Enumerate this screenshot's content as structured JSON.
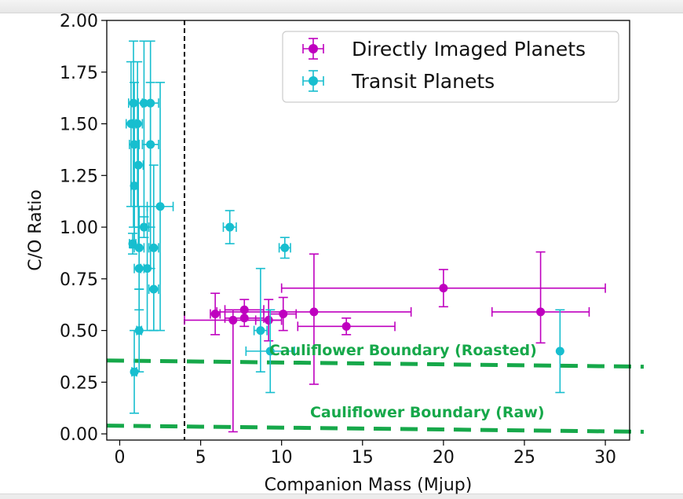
{
  "chart_data": {
    "type": "scatter",
    "title": "",
    "xlabel": "Companion Mass (Mjup)",
    "ylabel": "C/O Ratio",
    "xlim": [
      -0.8,
      31.5
    ],
    "ylim": [
      -0.03,
      2.0
    ],
    "xticks": [
      0,
      5,
      10,
      15,
      20,
      25,
      30
    ],
    "xtick_labels": [
      "0",
      "5",
      "10",
      "15",
      "20",
      "25",
      "30"
    ],
    "yticks": [
      0.0,
      0.25,
      0.5,
      0.75,
      1.0,
      1.25,
      1.5,
      1.75,
      2.0
    ],
    "ytick_labels": [
      "0.00",
      "0.25",
      "0.50",
      "0.75",
      "1.00",
      "1.25",
      "1.50",
      "1.75",
      "2.00"
    ],
    "grid": false,
    "legend_position": "top-right",
    "colors": {
      "directly_imaged": "#bf00bf",
      "transit": "#17becf",
      "boundary": "#16a84a",
      "vline": "#000000"
    },
    "vertical_line": {
      "x": 4.0,
      "style": "dashed"
    },
    "series": [
      {
        "name": "Directly Imaged Planets",
        "color": "#bf00bf",
        "points": [
          {
            "x": 5.9,
            "y": 0.58,
            "xerr": [
              0.3,
              0.3
            ],
            "yerr": [
              0.1,
              0.1
            ]
          },
          {
            "x": 7.0,
            "y": 0.55,
            "xerr": [
              3.0,
              3.0
            ],
            "yerr": [
              0.54,
              0.05
            ]
          },
          {
            "x": 7.7,
            "y": 0.6,
            "xerr": [
              1.2,
              1.2
            ],
            "yerr": [
              0.05,
              0.05
            ]
          },
          {
            "x": 7.7,
            "y": 0.56,
            "xerr": [
              1.2,
              1.2
            ],
            "yerr": [
              0.04,
              0.04
            ]
          },
          {
            "x": 9.2,
            "y": 0.55,
            "xerr": [
              0.8,
              0.8
            ],
            "yerr": [
              0.1,
              0.1
            ]
          },
          {
            "x": 10.1,
            "y": 0.58,
            "xerr": [
              0.8,
              0.8
            ],
            "yerr": [
              0.08,
              0.08
            ]
          },
          {
            "x": 12.0,
            "y": 0.59,
            "xerr": [
              6.0,
              6.0
            ],
            "yerr": [
              0.35,
              0.28
            ]
          },
          {
            "x": 14.0,
            "y": 0.52,
            "xerr": [
              3.0,
              3.0
            ],
            "yerr": [
              0.04,
              0.04
            ]
          },
          {
            "x": 20.0,
            "y": 0.705,
            "xerr": [
              10.0,
              10.0
            ],
            "yerr": [
              0.09,
              0.09
            ]
          },
          {
            "x": 26.0,
            "y": 0.59,
            "xerr": [
              3.0,
              3.0
            ],
            "yerr": [
              0.15,
              0.29
            ]
          }
        ]
      },
      {
        "name": "Transit Planets",
        "color": "#17becf",
        "points": [
          {
            "x": 0.7,
            "y": 1.5,
            "xerr": [
              0.3,
              0.3
            ],
            "yerr": [
              0.4,
              0.3
            ]
          },
          {
            "x": 0.85,
            "y": 1.6,
            "xerr": [
              0.3,
              0.3
            ],
            "yerr": [
              0.6,
              0.3
            ]
          },
          {
            "x": 0.9,
            "y": 1.4,
            "xerr": [
              0.3,
              0.3
            ],
            "yerr": [
              0.5,
              0.3
            ]
          },
          {
            "x": 0.9,
            "y": 1.2,
            "xerr": [
              0.2,
              0.2
            ],
            "yerr": [
              0.3,
              0.3
            ]
          },
          {
            "x": 0.8,
            "y": 0.92,
            "xerr": [
              0.2,
              0.2
            ],
            "yerr": [
              0.05,
              0.05
            ]
          },
          {
            "x": 0.9,
            "y": 0.3,
            "xerr": [
              0.15,
              0.15
            ],
            "yerr": [
              0.2,
              0.2
            ]
          },
          {
            "x": 1.1,
            "y": 1.5,
            "xerr": [
              0.3,
              0.3
            ],
            "yerr": [
              0.4,
              0.3
            ]
          },
          {
            "x": 1.15,
            "y": 1.3,
            "xerr": [
              0.3,
              0.3
            ],
            "yerr": [
              0.4,
              0.3
            ]
          },
          {
            "x": 1.2,
            "y": 0.9,
            "xerr": [
              0.3,
              0.3
            ],
            "yerr": [
              0.2,
              0.2
            ]
          },
          {
            "x": 1.2,
            "y": 0.8,
            "xerr": [
              0.3,
              0.3
            ],
            "yerr": [
              0.2,
              0.2
            ]
          },
          {
            "x": 1.2,
            "y": 0.5,
            "xerr": [
              0.15,
              0.15
            ],
            "yerr": [
              0.2,
              0.2
            ]
          },
          {
            "x": 1.5,
            "y": 1.6,
            "xerr": [
              0.4,
              0.4
            ],
            "yerr": [
              0.6,
              0.3
            ]
          },
          {
            "x": 1.5,
            "y": 1.0,
            "xerr": [
              0.3,
              0.3
            ],
            "yerr": [
              0.05,
              0.05
            ]
          },
          {
            "x": 1.7,
            "y": 0.8,
            "xerr": [
              0.4,
              0.4
            ],
            "yerr": [
              0.3,
              0.3
            ]
          },
          {
            "x": 1.9,
            "y": 1.6,
            "xerr": [
              0.5,
              0.5
            ],
            "yerr": [
              0.6,
              0.3
            ]
          },
          {
            "x": 1.9,
            "y": 1.4,
            "xerr": [
              0.5,
              0.5
            ],
            "yerr": [
              0.6,
              0.3
            ]
          },
          {
            "x": 2.1,
            "y": 0.9,
            "xerr": [
              0.3,
              0.3
            ],
            "yerr": [
              0.4,
              0.4
            ]
          },
          {
            "x": 2.1,
            "y": 0.7,
            "xerr": [
              0.3,
              0.3
            ],
            "yerr": [
              0.2,
              0.2
            ]
          },
          {
            "x": 2.5,
            "y": 1.1,
            "xerr": [
              0.8,
              0.8
            ],
            "yerr": [
              0.6,
              0.6
            ]
          },
          {
            "x": 6.8,
            "y": 1.0,
            "xerr": [
              0.4,
              0.4
            ],
            "yerr": [
              0.08,
              0.08
            ]
          },
          {
            "x": 8.7,
            "y": 0.5,
            "xerr": [
              0.4,
              0.4
            ],
            "yerr": [
              0.2,
              0.3
            ]
          },
          {
            "x": 9.3,
            "y": 0.4,
            "xerr": [
              1.5,
              1.5
            ],
            "yerr": [
              0.2,
              0.2
            ]
          },
          {
            "x": 10.2,
            "y": 0.9,
            "xerr": [
              0.35,
              0.35
            ],
            "yerr": [
              0.05,
              0.05
            ]
          },
          {
            "x": 27.2,
            "y": 0.4,
            "xerr": [
              0.0,
              0.0
            ],
            "yerr": [
              0.2,
              0.2
            ]
          }
        ]
      }
    ],
    "boundaries": [
      {
        "label": "Cauliflower Boundary (Roasted)",
        "x": [
          -0.8,
          32.0
        ],
        "y": [
          0.355,
          0.325
        ],
        "label_at": {
          "x": 17.5,
          "y": 0.38
        }
      },
      {
        "label": "Cauliflower Boundary (Raw)",
        "x": [
          -0.8,
          32.0
        ],
        "y": [
          0.04,
          0.01
        ],
        "label_at": {
          "x": 19.0,
          "y": 0.08
        }
      }
    ]
  }
}
